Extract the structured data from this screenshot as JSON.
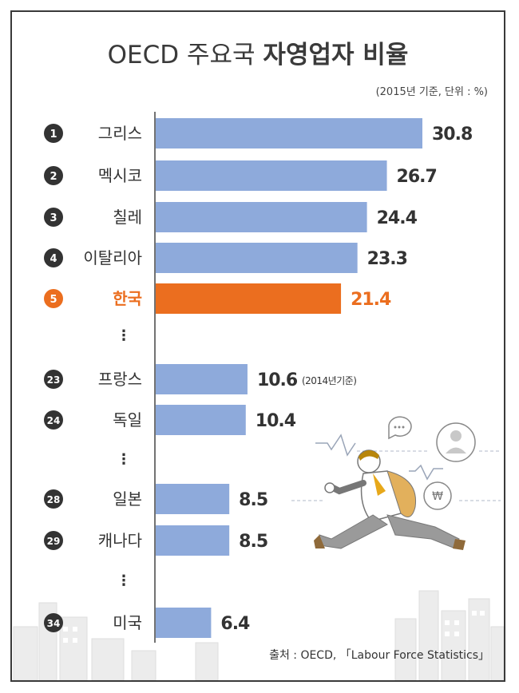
{
  "title": {
    "part1": "OECD 주요국 ",
    "part2": "자영업자 비율"
  },
  "subtitle": "(2015년 기준, 단위 : %)",
  "source": "출처 : OECD, 「Labour Force Statistics」",
  "colors": {
    "bar": "#8eaadb",
    "highlight": "#eb6e1f",
    "badge": "#333333",
    "text": "#333333"
  },
  "chart_data": {
    "type": "bar",
    "orientation": "horizontal",
    "title": "OECD 주요국 자영업자 비율",
    "subtitle": "(2015년 기준, 단위 : %)",
    "unit": "%",
    "xlim": [
      0,
      30.8
    ],
    "rows": [
      {
        "kind": "bar",
        "rank": "1",
        "label": "그리스",
        "value": 30.8,
        "value_label": "30.8"
      },
      {
        "kind": "bar",
        "rank": "2",
        "label": "멕시코",
        "value": 26.7,
        "value_label": "26.7"
      },
      {
        "kind": "bar",
        "rank": "3",
        "label": "칠레",
        "value": 24.4,
        "value_label": "24.4"
      },
      {
        "kind": "bar",
        "rank": "4",
        "label": "이탈리아",
        "value": 23.3,
        "value_label": "23.3"
      },
      {
        "kind": "bar",
        "rank": "5",
        "label": "한국",
        "value": 21.4,
        "value_label": "21.4",
        "highlight": true
      },
      {
        "kind": "gap",
        "label": "⋮"
      },
      {
        "kind": "bar",
        "rank": "23",
        "label": "프랑스",
        "value": 10.6,
        "value_label": "10.6",
        "note": "(2014년기준)"
      },
      {
        "kind": "bar",
        "rank": "24",
        "label": "독일",
        "value": 10.4,
        "value_label": "10.4"
      },
      {
        "kind": "gap",
        "label": "⋮"
      },
      {
        "kind": "bar",
        "rank": "28",
        "label": "일본",
        "value": 8.5,
        "value_label": "8.5"
      },
      {
        "kind": "bar",
        "rank": "29",
        "label": "캐나다",
        "value": 8.5,
        "value_label": "8.5"
      },
      {
        "kind": "gap",
        "label": "⋮"
      },
      {
        "kind": "bar",
        "rank": "34",
        "label": "미국",
        "value": 6.4,
        "value_label": "6.4"
      }
    ]
  }
}
